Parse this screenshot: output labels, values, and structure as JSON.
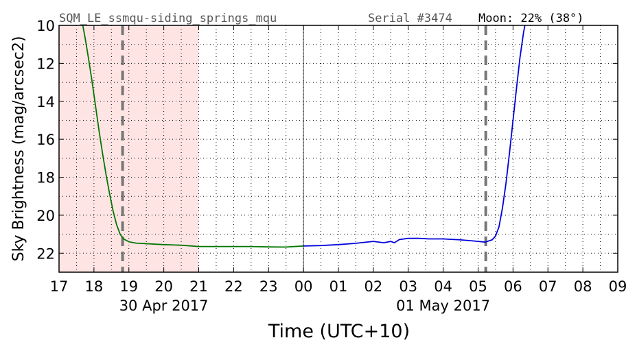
{
  "chart_data": {
    "type": "line",
    "header": {
      "site": "SQM_LE_ssmqu-siding_springs_mqu",
      "serial": "Serial #3474",
      "moon": "Moon: 22% (38°)"
    },
    "xlabel": "Time (UTC+10)",
    "ylabel": "Sky Brightness (mag/arcsec2)",
    "x_unit": "hours since 17:00 on 30 Apr 2017 (UTC+10)",
    "xlim": [
      0,
      16
    ],
    "ylim": [
      23,
      10
    ],
    "y_inverted": true,
    "x_tick_labels": [
      "17",
      "18",
      "19",
      "20",
      "21",
      "22",
      "23",
      "00",
      "01",
      "02",
      "03",
      "04",
      "05",
      "06",
      "07",
      "08",
      "09"
    ],
    "y_ticks": [
      10,
      12,
      14,
      16,
      18,
      20,
      22
    ],
    "date_labels": [
      {
        "text": "30 Apr 2017",
        "x": 3.0
      },
      {
        "text": "01 May 2017",
        "x": 11.0
      }
    ],
    "twilight_region": {
      "x_start": 0,
      "x_end": 4.0,
      "color": "#ffe4e4"
    },
    "dashed_lines": [
      1.82,
      12.22
    ],
    "midnight_line": 7.0,
    "grid": "dotted",
    "colors": {
      "evening": "#007700",
      "night": "#0000dd",
      "dashed": "#777777"
    },
    "series": [
      {
        "name": "",
        "color": "#007700",
        "points": [
          [
            0.68,
            10.0
          ],
          [
            0.75,
            10.7
          ],
          [
            0.85,
            11.8
          ],
          [
            0.95,
            13.0
          ],
          [
            1.05,
            14.3
          ],
          [
            1.15,
            15.6
          ],
          [
            1.25,
            16.8
          ],
          [
            1.35,
            17.9
          ],
          [
            1.45,
            18.9
          ],
          [
            1.55,
            19.8
          ],
          [
            1.65,
            20.5
          ],
          [
            1.75,
            21.0
          ],
          [
            1.85,
            21.25
          ],
          [
            2.0,
            21.4
          ],
          [
            2.2,
            21.47
          ],
          [
            2.5,
            21.5
          ],
          [
            3.0,
            21.55
          ],
          [
            3.5,
            21.58
          ],
          [
            4.0,
            21.65
          ],
          [
            4.5,
            21.65
          ],
          [
            5.0,
            21.65
          ],
          [
            5.5,
            21.65
          ],
          [
            6.0,
            21.67
          ],
          [
            6.5,
            21.68
          ],
          [
            7.0,
            21.62
          ]
        ]
      },
      {
        "name": "",
        "color": "#0000dd",
        "points": [
          [
            7.0,
            21.62
          ],
          [
            7.5,
            21.6
          ],
          [
            8.0,
            21.55
          ],
          [
            8.5,
            21.48
          ],
          [
            9.0,
            21.38
          ],
          [
            9.3,
            21.45
          ],
          [
            9.5,
            21.38
          ],
          [
            9.6,
            21.45
          ],
          [
            9.75,
            21.28
          ],
          [
            10.0,
            21.22
          ],
          [
            10.3,
            21.22
          ],
          [
            10.6,
            21.25
          ],
          [
            11.0,
            21.25
          ],
          [
            11.5,
            21.3
          ],
          [
            11.9,
            21.36
          ],
          [
            12.0,
            21.38
          ],
          [
            12.2,
            21.42
          ],
          [
            12.4,
            21.3
          ],
          [
            12.5,
            21.1
          ],
          [
            12.6,
            20.6
          ],
          [
            12.7,
            19.6
          ],
          [
            12.8,
            18.3
          ],
          [
            12.9,
            16.7
          ],
          [
            13.0,
            15.0
          ],
          [
            13.1,
            13.3
          ],
          [
            13.2,
            11.7
          ],
          [
            13.3,
            10.4
          ],
          [
            13.34,
            10.0
          ]
        ]
      }
    ]
  }
}
